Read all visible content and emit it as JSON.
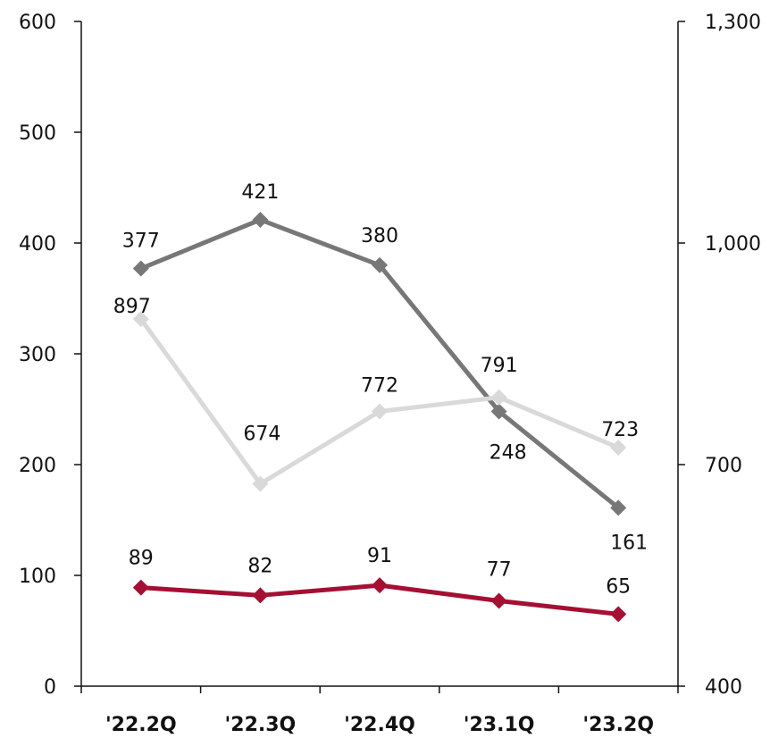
{
  "chart_data": {
    "type": "line",
    "categories": [
      "'22.2Q",
      "'22.3Q",
      "'22.4Q",
      "'23.1Q",
      "'23.2Q"
    ],
    "y_left": {
      "ylim": [
        0,
        600
      ],
      "ticks": [
        0,
        100,
        200,
        300,
        400,
        500,
        600
      ],
      "tick_labels": [
        "0",
        "100",
        "200",
        "300",
        "400",
        "500",
        "600"
      ]
    },
    "y_right": {
      "ylim": [
        400,
        1300
      ],
      "ticks": [
        400,
        700,
        1000,
        1300
      ],
      "tick_labels": [
        "400",
        "700",
        "1,000",
        "1,300"
      ]
    },
    "grid": false,
    "legend": "none",
    "series": [
      {
        "axis": "left",
        "color": "#777777",
        "marker": "diamond",
        "values": [
          377,
          421,
          380,
          248,
          161
        ],
        "labels": [
          "377",
          "421",
          "380",
          "248",
          "161"
        ]
      },
      {
        "axis": "right",
        "color": "#d9d9d9",
        "marker": "diamond",
        "values": [
          897,
          674,
          772,
          791,
          723
        ],
        "labels": [
          "897",
          "674",
          "772",
          "791",
          "723"
        ]
      },
      {
        "axis": "left",
        "color": "#a50f32",
        "marker": "diamond",
        "values": [
          89,
          82,
          91,
          77,
          65
        ],
        "labels": [
          "89",
          "82",
          "91",
          "77",
          "65"
        ]
      }
    ]
  }
}
